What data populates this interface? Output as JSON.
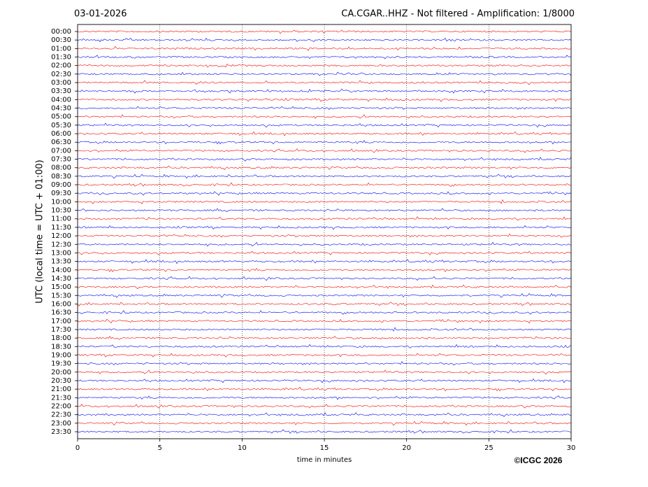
{
  "chart_data": {
    "type": "helicorder",
    "title_left": "03-01-2026",
    "title": "CA.CGAR..HHZ - Not filtered - Amplification: 1/8000",
    "x_label": "time in minutes",
    "y_label": "UTC (local time = UTC + 01:00)",
    "credit": "©ICGC 2026",
    "categories": [
      "00:00",
      "00:30",
      "01:00",
      "01:30",
      "02:00",
      "02:30",
      "03:00",
      "03:30",
      "04:00",
      "04:30",
      "05:00",
      "05:30",
      "06:00",
      "06:30",
      "07:00",
      "07:30",
      "08:00",
      "08:30",
      "09:00",
      "09:30",
      "10:00",
      "10:30",
      "11:00",
      "11:30",
      "12:00",
      "12:30",
      "13:00",
      "13:30",
      "14:00",
      "14:30",
      "15:00",
      "15:30",
      "16:00",
      "16:30",
      "17:00",
      "17:30",
      "18:00",
      "18:30",
      "19:00",
      "19:30",
      "20:00",
      "20:30",
      "21:00",
      "21:30",
      "22:00",
      "22:30",
      "23:00",
      "23:30"
    ],
    "colors": [
      "#ff0000",
      "#0000ff"
    ],
    "xlim": [
      0,
      30
    ],
    "xticks": [
      0,
      5,
      10,
      15,
      20,
      25,
      30
    ],
    "grid": true
  }
}
